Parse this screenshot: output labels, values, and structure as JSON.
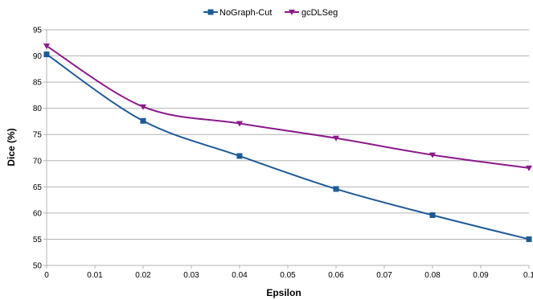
{
  "chart_data": {
    "type": "line",
    "xlabel": "Epsilon",
    "ylabel": "Dice (%)",
    "xlim": [
      0,
      0.1
    ],
    "ylim": [
      50,
      95
    ],
    "x_ticks": [
      "0",
      "0.01",
      "0.02",
      "0.03",
      "0.04",
      "0.05",
      "0.06",
      "0.07",
      "0.08",
      "0.09",
      "0.1"
    ],
    "y_ticks": [
      "50",
      "55",
      "60",
      "65",
      "70",
      "75",
      "80",
      "85",
      "90",
      "95"
    ],
    "grid": "horizontal",
    "legend_position": "top-center",
    "series": [
      {
        "name": "NoGraph-Cut",
        "color": "#1f5a96",
        "marker": "square",
        "x": [
          0,
          0.02,
          0.04,
          0.06,
          0.08,
          0.1
        ],
        "values": [
          90.3,
          77.6,
          70.9,
          64.6,
          59.6,
          55.0
        ]
      },
      {
        "name": "gcDLSeg",
        "color": "#8b1a8b",
        "marker": "triangle-down",
        "x": [
          0,
          0.02,
          0.04,
          0.06,
          0.08,
          0.1
        ],
        "values": [
          91.9,
          80.3,
          77.1,
          74.3,
          71.1,
          68.6
        ]
      }
    ]
  }
}
